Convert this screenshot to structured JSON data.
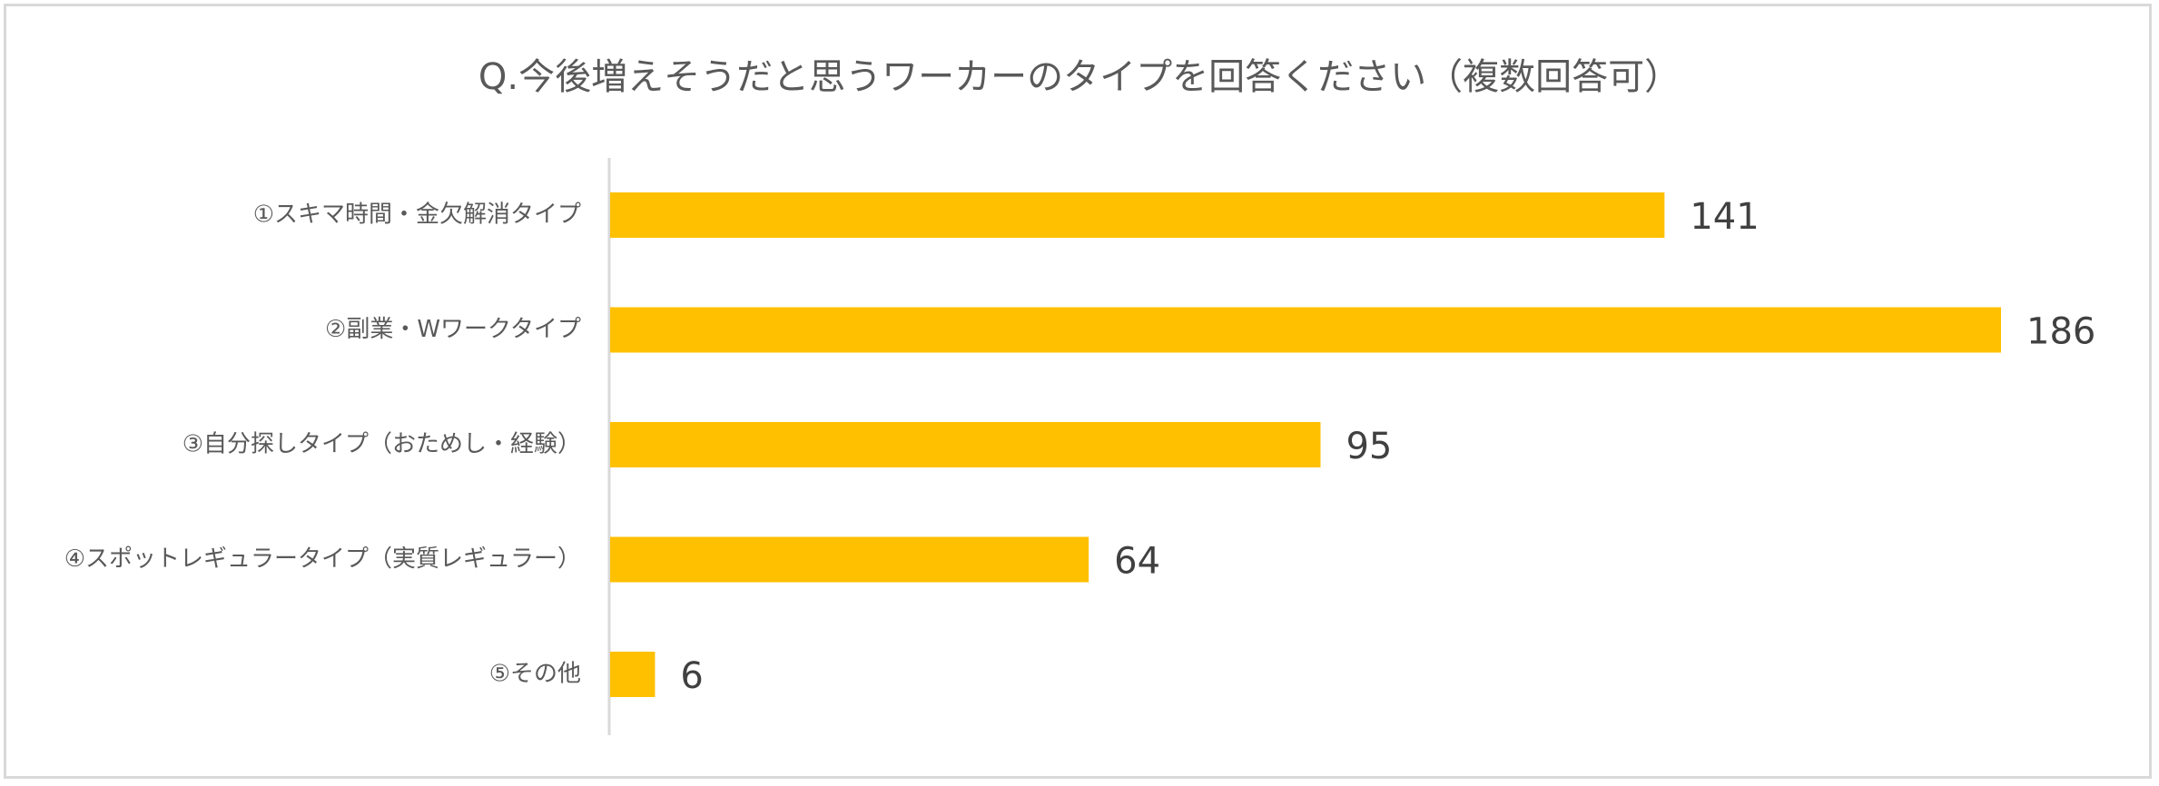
{
  "chart_data": {
    "type": "bar",
    "orientation": "horizontal",
    "title": "Q.今後増えそうだと思うワーカーのタイプを回答ください（複数回答可）",
    "categories": [
      "①スキマ時間・金欠解消タイプ",
      "②副業・Wワークタイプ",
      "③自分探しタイプ（おためし・経験）",
      "④スポットレギュラータイプ（実質レギュラー）",
      "⑤その他"
    ],
    "values": [
      141,
      186,
      95,
      64,
      6
    ],
    "xlim": [
      0,
      186
    ],
    "grid": false,
    "legend": "none",
    "data_labels": true,
    "bar_color": "#FFC000",
    "axis_color": "#d9d9d9"
  }
}
